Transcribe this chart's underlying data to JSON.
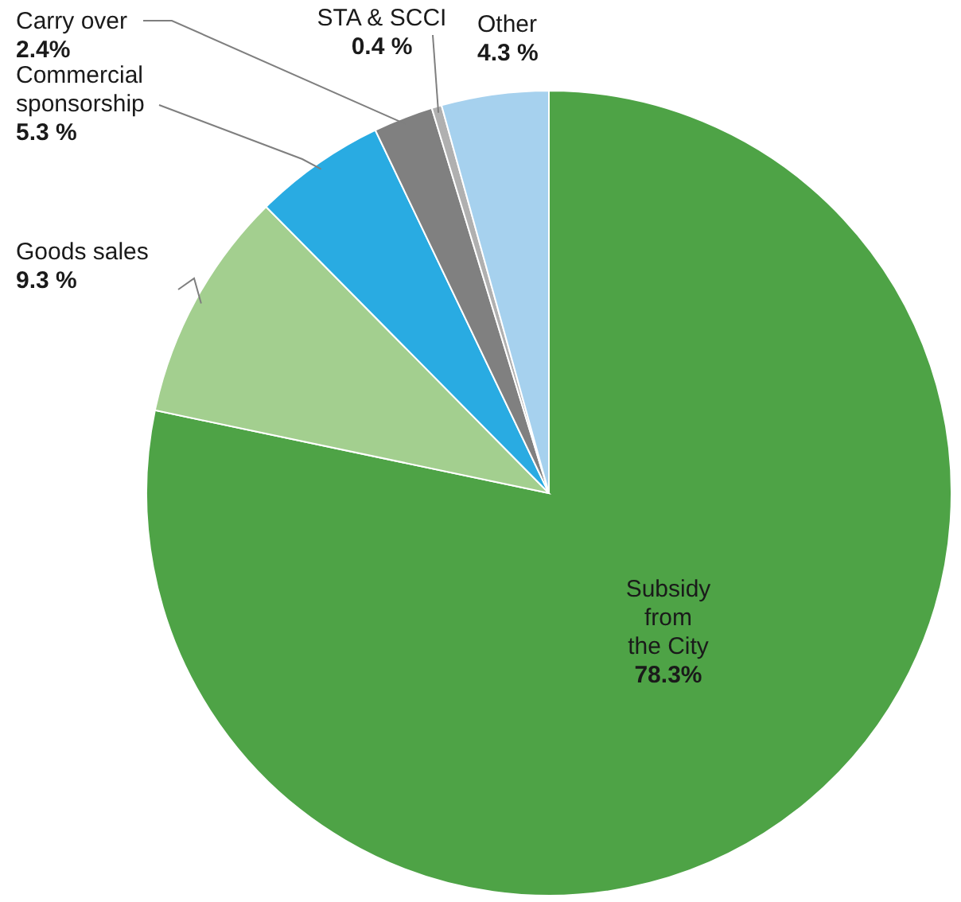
{
  "chart_data": {
    "type": "pie",
    "categories": [
      "Subsidy\nfrom\nthe City",
      "Goods sales",
      "Commercial\nsponsorship",
      "Carry over",
      "STA & SCCI",
      "Other"
    ],
    "values": [
      78.3,
      9.3,
      5.3,
      2.4,
      0.4,
      4.3
    ],
    "colors": [
      "#4ea346",
      "#a3cf8f",
      "#29abe2",
      "#808080",
      "#b0b0b0",
      "#a6d1ee"
    ],
    "value_labels": [
      "78.3%",
      "9.3 %",
      "5.3 %",
      "2.4%",
      "0.4 %",
      "4.3 %"
    ]
  }
}
